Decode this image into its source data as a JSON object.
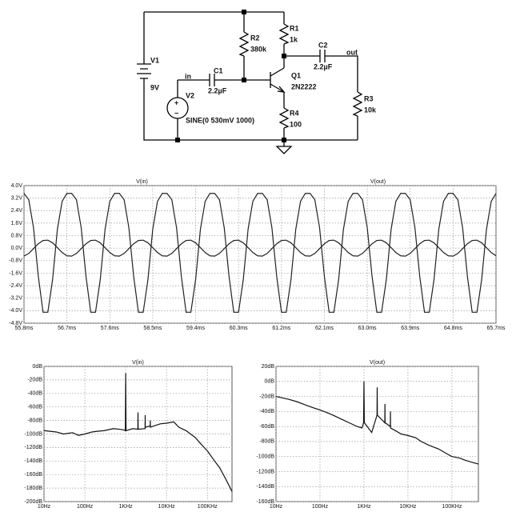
{
  "schematic": {
    "components": [
      {
        "name": "V1",
        "value": "9V"
      },
      {
        "name": "R2",
        "value": "380k"
      },
      {
        "name": "R1",
        "value": "1k"
      },
      {
        "name": "C2",
        "value": "2.2µF"
      },
      {
        "name": "C1",
        "value": "2.2µF"
      },
      {
        "name": "V2",
        "value": "SINE(0 530mV 1000)"
      },
      {
        "name": "Q1",
        "value": "2N2222"
      },
      {
        "name": "R3",
        "value": "10k"
      },
      {
        "name": "R4",
        "value": "100"
      }
    ],
    "net_labels": [
      "in",
      "out"
    ],
    "polarity": [
      "+",
      "−"
    ]
  },
  "chart_data": [
    {
      "type": "line",
      "xscale": "linear",
      "grid": true,
      "x": [
        55.8,
        55.9,
        56.0,
        56.1,
        56.2,
        56.3,
        56.4,
        56.5,
        56.6,
        56.7,
        56.8,
        56.9,
        57.0,
        57.1,
        57.2,
        57.3,
        57.4,
        57.5,
        57.6,
        57.7,
        57.8,
        57.9,
        58.0,
        58.1,
        58.2,
        58.3,
        58.4,
        58.5,
        58.6,
        58.7,
        58.8,
        58.9,
        59.0,
        59.1,
        59.2,
        59.3,
        59.4,
        59.5,
        59.6,
        59.7,
        59.8,
        59.9,
        60.0,
        60.1,
        60.2,
        60.3,
        60.4,
        60.5,
        60.6,
        60.7,
        60.8,
        60.9,
        61.0,
        61.1,
        61.2,
        61.3,
        61.4,
        61.5,
        61.6,
        61.7,
        61.8,
        61.9,
        62.0,
        62.1,
        62.2,
        62.3,
        62.4,
        62.5,
        62.6,
        62.7,
        62.8,
        62.9,
        63.0,
        63.1,
        63.2,
        63.3,
        63.4,
        63.5,
        63.6,
        63.7,
        63.8,
        63.9,
        64.0,
        64.1,
        64.2,
        64.3,
        64.4,
        64.5,
        64.6,
        64.7,
        64.8,
        64.9,
        65.0,
        65.1,
        65.2,
        65.3,
        65.4,
        65.5,
        65.6,
        65.7
      ],
      "series": [
        {
          "name": "V(in)",
          "color": "#222222",
          "values": [
            -0.51,
            -0.34,
            -0.03,
            0.28,
            0.49,
            0.51,
            0.34,
            0.03,
            -0.28,
            -0.49,
            -0.51,
            -0.34,
            -0.03,
            0.28,
            0.49,
            0.51,
            0.34,
            0.03,
            -0.28,
            -0.49,
            -0.51,
            -0.34,
            -0.03,
            0.28,
            0.49,
            0.51,
            0.34,
            0.03,
            -0.28,
            -0.49,
            -0.51,
            -0.34,
            -0.03,
            0.28,
            0.49,
            0.51,
            0.34,
            0.03,
            -0.28,
            -0.49,
            -0.51,
            -0.34,
            -0.03,
            0.28,
            0.49,
            0.51,
            0.34,
            0.03,
            -0.28,
            -0.49,
            -0.51,
            -0.34,
            -0.03,
            0.28,
            0.49,
            0.51,
            0.34,
            0.03,
            -0.28,
            -0.49,
            -0.51,
            -0.34,
            -0.03,
            0.28,
            0.49,
            0.51,
            0.34,
            0.03,
            -0.28,
            -0.49,
            -0.51,
            -0.34,
            -0.03,
            0.28,
            0.49,
            0.51,
            0.34,
            0.03,
            -0.28,
            -0.49,
            -0.51,
            -0.34,
            -0.03,
            0.28,
            0.49,
            0.51,
            0.34,
            0.03,
            -0.28,
            -0.49,
            -0.51,
            -0.34,
            -0.03,
            0.28,
            0.49,
            0.51,
            0.34,
            0.03,
            -0.28,
            -0.49
          ]
        },
        {
          "name": "V(out)",
          "color": "#222222",
          "values": [
            3.5,
            3.1,
            1.3,
            -1.8,
            -4.1,
            -4.1,
            -2.0,
            1.2,
            3.0,
            3.5,
            3.5,
            3.1,
            1.3,
            -1.8,
            -4.1,
            -4.1,
            -2.0,
            1.2,
            3.0,
            3.5,
            3.5,
            3.1,
            1.3,
            -1.8,
            -4.1,
            -4.1,
            -2.0,
            1.2,
            3.0,
            3.5,
            3.5,
            3.1,
            1.3,
            -1.8,
            -4.1,
            -4.1,
            -2.0,
            1.2,
            3.0,
            3.5,
            3.5,
            3.1,
            1.3,
            -1.8,
            -4.1,
            -4.1,
            -2.0,
            1.2,
            3.0,
            3.5,
            3.5,
            3.1,
            1.3,
            -1.8,
            -4.1,
            -4.1,
            -2.0,
            1.2,
            3.0,
            3.5,
            3.5,
            3.1,
            1.3,
            -1.8,
            -4.1,
            -4.1,
            -2.0,
            1.2,
            3.0,
            3.5,
            3.5,
            3.1,
            1.3,
            -1.8,
            -4.1,
            -4.1,
            -2.0,
            1.2,
            3.0,
            3.5,
            3.5,
            3.1,
            1.3,
            -1.8,
            -4.1,
            -4.1,
            -2.0,
            1.2,
            3.0,
            3.5,
            3.5,
            3.1,
            1.3,
            -1.8,
            -4.1,
            -4.1,
            -2.0,
            1.2,
            3.0,
            3.5
          ]
        }
      ],
      "xlim": [
        55.8,
        65.7
      ],
      "xticks": [
        {
          "value": 55.8,
          "label": "55.8ms"
        },
        {
          "value": 56.7,
          "label": "56.7ms"
        },
        {
          "value": 57.6,
          "label": "57.6ms"
        },
        {
          "value": 58.5,
          "label": "58.5ms"
        },
        {
          "value": 59.4,
          "label": "59.4ms"
        },
        {
          "value": 60.3,
          "label": "60.3ms"
        },
        {
          "value": 61.2,
          "label": "61.2ms"
        },
        {
          "value": 62.1,
          "label": "62.1ms"
        },
        {
          "value": 63.0,
          "label": "63.0ms"
        },
        {
          "value": 63.9,
          "label": "63.9ms"
        },
        {
          "value": 64.8,
          "label": "64.8ms"
        },
        {
          "value": 65.7,
          "label": "65.7ms"
        }
      ],
      "ylim": [
        -4.8,
        4.0
      ],
      "yticks": [
        {
          "value": 4.0,
          "label": "4.0V"
        },
        {
          "value": 3.2,
          "label": "3.2V"
        },
        {
          "value": 2.4,
          "label": "2.4V"
        },
        {
          "value": 1.6,
          "label": "1.6V"
        },
        {
          "value": 0.8,
          "label": "0.8V"
        },
        {
          "value": 0,
          "label": "0.0V"
        },
        {
          "value": -0.8,
          "label": "-0.8V"
        },
        {
          "value": -1.6,
          "label": "-1.6V"
        },
        {
          "value": -2.4,
          "label": "-2.4V"
        },
        {
          "value": -3.2,
          "label": "-3.2V"
        },
        {
          "value": -4.0,
          "label": "-4.0V"
        },
        {
          "value": -4.8,
          "label": "-4.8V"
        }
      ]
    },
    {
      "type": "line",
      "xscale": "log",
      "grid": true,
      "x": [
        10,
        20,
        30,
        50,
        70,
        100,
        150,
        200,
        300,
        500,
        700,
        900,
        980,
        1000,
        1020,
        1500,
        1980,
        2000,
        2020,
        2980,
        3000,
        3020,
        3980,
        4000,
        4020,
        5000,
        7000,
        10000,
        15000,
        20000,
        30000,
        50000,
        70000,
        100000,
        150000,
        200000,
        300000,
        400000
      ],
      "series": [
        {
          "name": "V(in)",
          "color": "#111111",
          "values": [
            -95,
            -97,
            -100,
            -98,
            -102,
            -100,
            -97,
            -96,
            -95,
            -92,
            -93,
            -94,
            -95,
            -10,
            -95,
            -92,
            -93,
            -68,
            -93,
            -92,
            -72,
            -90,
            -88,
            -80,
            -90,
            -88,
            -85,
            -84,
            -82,
            -90,
            -95,
            -105,
            -115,
            -125,
            -140,
            -150,
            -170,
            -185
          ]
        }
      ],
      "xlim": [
        10,
        400000
      ],
      "xticks": [
        {
          "value": 10,
          "label": "10Hz"
        },
        {
          "value": 100,
          "label": "100Hz"
        },
        {
          "value": 1000,
          "label": "1KHz"
        },
        {
          "value": 10000,
          "label": "10KHz"
        },
        {
          "value": 100000,
          "label": "100KHz"
        }
      ],
      "ylim": [
        -200,
        0
      ],
      "yticks": [
        {
          "value": 0,
          "label": "0dB"
        },
        {
          "value": -20,
          "label": "-20dB"
        },
        {
          "value": -40,
          "label": "-40dB"
        },
        {
          "value": -60,
          "label": "-60dB"
        },
        {
          "value": -80,
          "label": "-80dB"
        },
        {
          "value": -100,
          "label": "-100dB"
        },
        {
          "value": -120,
          "label": "-120dB"
        },
        {
          "value": -140,
          "label": "-140dB"
        },
        {
          "value": -160,
          "label": "-160dB"
        },
        {
          "value": -180,
          "label": "-180dB"
        },
        {
          "value": -200,
          "label": "-200dB"
        }
      ]
    },
    {
      "type": "line",
      "xscale": "log",
      "grid": true,
      "x": [
        10,
        20,
        30,
        50,
        70,
        100,
        150,
        200,
        300,
        500,
        700,
        900,
        980,
        1000,
        1020,
        1500,
        1980,
        2000,
        2020,
        2980,
        3000,
        3020,
        3980,
        4000,
        4020,
        5000,
        7000,
        10000,
        15000,
        20000,
        30000,
        50000,
        70000,
        100000,
        150000,
        200000,
        300000,
        400000
      ],
      "series": [
        {
          "name": "V(out)",
          "color": "#111111",
          "values": [
            -20,
            -24,
            -27,
            -32,
            -35,
            -38,
            -42,
            -45,
            -50,
            -56,
            -60,
            -62,
            -55,
            0,
            -55,
            -68,
            -45,
            -8,
            -45,
            -55,
            -30,
            -55,
            -60,
            -40,
            -62,
            -65,
            -70,
            -72,
            -75,
            -80,
            -85,
            -90,
            -95,
            -100,
            -102,
            -105,
            -108,
            -110
          ]
        }
      ],
      "xlim": [
        10,
        400000
      ],
      "xticks": [
        {
          "value": 10,
          "label": "10Hz"
        },
        {
          "value": 100,
          "label": "100Hz"
        },
        {
          "value": 1000,
          "label": "1KHz"
        },
        {
          "value": 10000,
          "label": "10KHz"
        },
        {
          "value": 100000,
          "label": "100KHz"
        }
      ],
      "ylim": [
        -160,
        20
      ],
      "yticks": [
        {
          "value": 20,
          "label": "20dB"
        },
        {
          "value": 0,
          "label": "0dB"
        },
        {
          "value": -20,
          "label": "-20dB"
        },
        {
          "value": -40,
          "label": "-40dB"
        },
        {
          "value": -60,
          "label": "-60dB"
        },
        {
          "value": -80,
          "label": "-80dB"
        },
        {
          "value": -100,
          "label": "-100dB"
        },
        {
          "value": -120,
          "label": "-120dB"
        },
        {
          "value": -140,
          "label": "-140dB"
        },
        {
          "value": -160,
          "label": "-160dB"
        }
      ]
    }
  ]
}
